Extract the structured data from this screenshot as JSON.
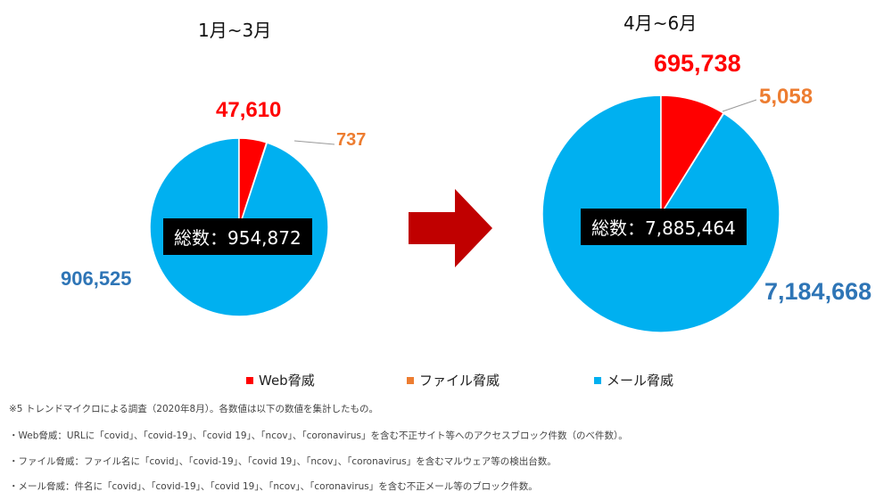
{
  "chart_data": [
    {
      "type": "pie",
      "title": "1月~3月",
      "total_label": "総数：954,872",
      "categories": [
        "Web脅威",
        "ファイル脅威",
        "メール脅威"
      ],
      "values": [
        47610,
        737,
        906525
      ],
      "value_labels": [
        "47,610",
        "737",
        "906,525"
      ],
      "colors": [
        "#ff0000",
        "#ed7d31",
        "#00b0f0"
      ]
    },
    {
      "type": "pie",
      "title": "4月~6月",
      "total_label": "総数：7,885,464",
      "categories": [
        "Web脅威",
        "ファイル脅威",
        "メール脅威"
      ],
      "values": [
        695738,
        5058,
        7184668
      ],
      "value_labels": [
        "695,738",
        "5,058",
        "7,184,668"
      ],
      "colors": [
        "#ff0000",
        "#ed7d31",
        "#00b0f0"
      ]
    }
  ],
  "legend": {
    "placement": "bottom",
    "items": [
      {
        "label": "Web脅威",
        "color": "#ff0000"
      },
      {
        "label": "ファイル脅威",
        "color": "#ed7d31"
      },
      {
        "label": "メール脅威",
        "color": "#00b0f0"
      }
    ]
  },
  "label_colors": {
    "web": "#ff0000",
    "file": "#ed7d31",
    "mail": "#2e75b6"
  },
  "arrow_color": "#c00000",
  "notes": [
    "※5 トレンドマイクロによる調査（2020年8月）。各数値は以下の数値を集計したもの。",
    "・Web脅威：URLに「covid」、「covid-19」、「covid 19」、「ncov」、「coronavirus」を含む不正サイト等へのアクセスブロック件数（のべ件数）。",
    "・ファイル脅威：ファイル名に「covid」、「covid-19」、「covid 19」、「ncov」、「coronavirus」を含むマルウェア等の検出台数。",
    "・メール脅威：件名に「covid」、「covid-19」、「covid 19」、「ncov」、「coronavirus」を含む不正メール等のブロック件数。"
  ]
}
